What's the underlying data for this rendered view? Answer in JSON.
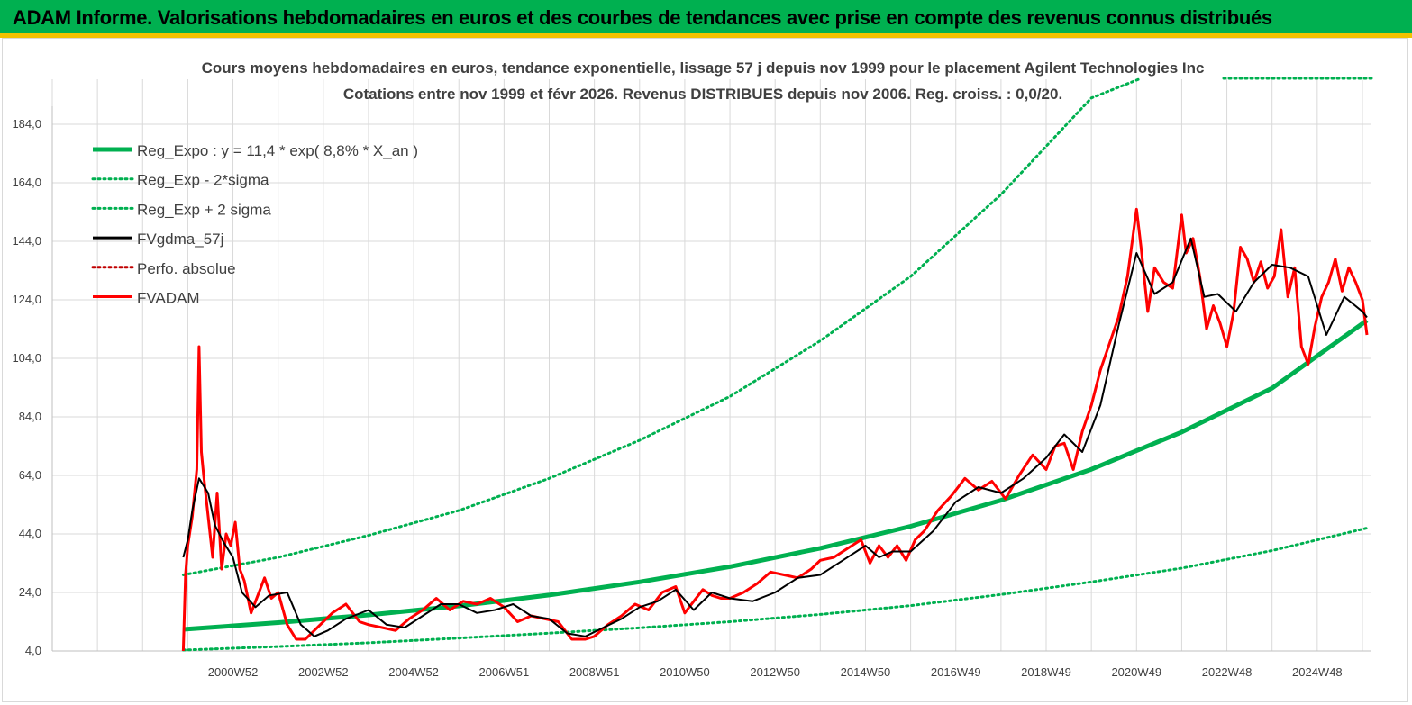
{
  "header": {
    "title": "ADAM Informe. Valorisations hebdomadaires en euros et des courbes de tendances avec prise en compte des revenus connus distribués"
  },
  "colors": {
    "header_bg": "#00b050",
    "accent_strip": "#f2c200",
    "reg_green": "#00b050",
    "fvadam_red": "#ff0000",
    "fvgdma_black": "#000000",
    "perfo_red": "#c00000"
  },
  "chart_data": {
    "type": "line",
    "title": "Cours moyens hebdomadaires en euros, tendance exponentielle, lissage 57 j depuis nov 1999 pour le placement Agilent Technologies Inc",
    "subtitle": "Cotations entre nov 1999 et févr 2026. Revenus DISTRIBUES depuis nov 2006. Reg. croiss. : 0,0/20.",
    "ylim": [
      4,
      184
    ],
    "xlim": [
      1997.0,
      2026.2
    ],
    "y_ticks": [
      "184,0",
      "164,0",
      "144,0",
      "124,0",
      "104,0",
      "84,0",
      "64,0",
      "44,0",
      "24,0",
      "4,0"
    ],
    "y_tick_values": [
      184,
      164,
      144,
      124,
      104,
      84,
      64,
      44,
      24,
      4
    ],
    "x_ticks": [
      "2000W52",
      "2002W52",
      "2004W52",
      "2006W51",
      "2008W51",
      "2010W50",
      "2012W50",
      "2014W50",
      "2016W49",
      "2018W49",
      "2020W49",
      "2022W48",
      "2024W48"
    ],
    "x_tick_values": [
      2001.0,
      2003.0,
      2005.0,
      2007.0,
      2009.0,
      2011.0,
      2013.0,
      2015.0,
      2017.0,
      2019.0,
      2021.0,
      2023.0,
      2025.0
    ],
    "grid": true,
    "legend_position": "top-left",
    "series": [
      {
        "name": "Reg_Expo : y = 11,4 * exp( 8,8% *  X_an )",
        "style": "solid-thick",
        "color": "#00b050",
        "x": [
          1999.9,
          2002,
          2004,
          2006,
          2008,
          2010,
          2012,
          2014,
          2016,
          2018,
          2020,
          2022,
          2024,
          2026.1
        ],
        "values": [
          11.4,
          13.7,
          16.3,
          19.4,
          23.1,
          27.6,
          32.8,
          39.1,
          46.6,
          55.5,
          66.1,
          78.8,
          93.8,
          117
        ]
      },
      {
        "name": "Reg_Exp - 2*sigma",
        "style": "dotted",
        "color": "#00b050",
        "x": [
          1999.9,
          2002,
          2004,
          2006,
          2008,
          2010,
          2012,
          2014,
          2016,
          2018,
          2020,
          2022,
          2024,
          2026.1
        ],
        "values": [
          4.3,
          5.5,
          6.8,
          8.4,
          10.1,
          11.9,
          14.0,
          16.5,
          19.5,
          23.3,
          27.6,
          32.3,
          38.3,
          46.0
        ]
      },
      {
        "name": "Reg_Exp + 2 sigma",
        "style": "dotted",
        "color": "#00b050",
        "x": [
          1999.9,
          2002,
          2004,
          2006,
          2008,
          2010,
          2012,
          2014,
          2016,
          2018,
          2020,
          2021.05
        ],
        "values": [
          30.0,
          36.0,
          43.5,
          52.0,
          63.0,
          76.0,
          91.0,
          110.0,
          132.0,
          160.0,
          193.0,
          214.0
        ]
      },
      {
        "name": "FVgdma_57j",
        "style": "solid",
        "color": "#000000",
        "x": [
          1999.9,
          2000.0,
          2000.1,
          2000.25,
          2000.45,
          2000.6,
          2000.8,
          2001.0,
          2001.2,
          2001.5,
          2001.8,
          2002.2,
          2002.5,
          2002.8,
          2003.1,
          2003.5,
          2004.0,
          2004.4,
          2004.8,
          2005.2,
          2005.6,
          2006.0,
          2006.4,
          2006.8,
          2007.2,
          2007.6,
          2008.0,
          2008.4,
          2008.8,
          2009.2,
          2009.6,
          2010.0,
          2010.4,
          2010.8,
          2011.2,
          2011.6,
          2012.0,
          2012.5,
          2013.0,
          2013.5,
          2014.0,
          2014.5,
          2015.0,
          2015.3,
          2015.6,
          2016.0,
          2016.5,
          2017.0,
          2017.5,
          2018.0,
          2018.5,
          2019.0,
          2019.4,
          2019.8,
          2020.2,
          2020.6,
          2021.0,
          2021.4,
          2021.8,
          2022.2,
          2022.5,
          2022.8,
          2023.2,
          2023.6,
          2024.0,
          2024.4,
          2024.8,
          2025.2,
          2025.6,
          2026.0,
          2026.1
        ],
        "values": [
          36,
          42,
          52,
          63,
          58,
          47,
          41,
          36,
          24,
          19,
          23,
          24,
          13,
          9,
          11,
          15,
          18,
          13,
          12,
          16,
          20,
          20,
          17,
          18,
          20,
          16,
          15,
          10,
          9,
          12,
          15,
          19,
          21,
          25,
          18,
          24,
          22,
          21,
          24,
          29,
          30,
          35,
          40,
          36,
          38,
          38,
          45,
          55,
          60,
          58,
          63,
          70,
          78,
          72,
          88,
          115,
          140,
          126,
          130,
          145,
          125,
          126,
          120,
          130,
          136,
          135,
          132,
          112,
          125,
          120,
          118
        ]
      },
      {
        "name": "Perfo. absolue",
        "style": "dotted",
        "color": "#c00000",
        "x": [],
        "values": []
      },
      {
        "name": "FVADAM",
        "style": "solid-thick",
        "color": "#ff0000",
        "x": [
          1999.9,
          1999.95,
          2000.0,
          2000.1,
          2000.2,
          2000.25,
          2000.3,
          2000.35,
          2000.45,
          2000.55,
          2000.65,
          2000.75,
          2000.85,
          2000.95,
          2001.05,
          2001.15,
          2001.25,
          2001.4,
          2001.55,
          2001.7,
          2001.85,
          2002.0,
          2002.2,
          2002.4,
          2002.6,
          2002.8,
          2003.0,
          2003.2,
          2003.5,
          2003.8,
          2004.0,
          2004.3,
          2004.6,
          2004.9,
          2005.2,
          2005.5,
          2005.8,
          2006.1,
          2006.4,
          2006.7,
          2007.0,
          2007.3,
          2007.6,
          2007.9,
          2008.2,
          2008.5,
          2008.8,
          2009.0,
          2009.3,
          2009.6,
          2009.9,
          2010.2,
          2010.5,
          2010.8,
          2011.0,
          2011.2,
          2011.4,
          2011.6,
          2011.8,
          2012.0,
          2012.3,
          2012.6,
          2012.9,
          2013.2,
          2013.5,
          2013.8,
          2014.0,
          2014.3,
          2014.6,
          2014.9,
          2015.1,
          2015.3,
          2015.5,
          2015.7,
          2015.9,
          2016.1,
          2016.3,
          2016.6,
          2016.9,
          2017.2,
          2017.5,
          2017.8,
          2018.1,
          2018.4,
          2018.7,
          2019.0,
          2019.2,
          2019.4,
          2019.6,
          2019.8,
          2020.0,
          2020.2,
          2020.4,
          2020.6,
          2020.8,
          2021.0,
          2021.1,
          2021.25,
          2021.4,
          2021.6,
          2021.8,
          2022.0,
          2022.1,
          2022.25,
          2022.4,
          2022.55,
          2022.7,
          2022.85,
          2023.0,
          2023.15,
          2023.3,
          2023.45,
          2023.6,
          2023.75,
          2023.9,
          2024.05,
          2024.2,
          2024.35,
          2024.5,
          2024.65,
          2024.8,
          2024.95,
          2025.1,
          2025.25,
          2025.4,
          2025.55,
          2025.7,
          2025.85,
          2026.0,
          2026.1
        ],
        "values": [
          4,
          30,
          40,
          50,
          66,
          108,
          72,
          64,
          50,
          36,
          58,
          32,
          44,
          40,
          48,
          32,
          28,
          17,
          23,
          29,
          22,
          24,
          13,
          8,
          8,
          11,
          14,
          17,
          20,
          14,
          13,
          12,
          11,
          15,
          18,
          22,
          18,
          21,
          20,
          22,
          19,
          14,
          16,
          15,
          14,
          8,
          8,
          9,
          13,
          16,
          20,
          18,
          24,
          26,
          17,
          21,
          25,
          23,
          22,
          22,
          24,
          27,
          31,
          30,
          29,
          32,
          35,
          36,
          39,
          42,
          34,
          40,
          36,
          40,
          35,
          42,
          45,
          52,
          57,
          63,
          59,
          62,
          56,
          64,
          71,
          66,
          74,
          75,
          66,
          79,
          88,
          100,
          109,
          118,
          132,
          155,
          142,
          120,
          135,
          130,
          128,
          153,
          140,
          145,
          132,
          114,
          122,
          116,
          108,
          120,
          142,
          138,
          130,
          137,
          128,
          132,
          148,
          125,
          135,
          108,
          102,
          115,
          125,
          130,
          138,
          127,
          135,
          130,
          124,
          112
        ]
      }
    ]
  }
}
